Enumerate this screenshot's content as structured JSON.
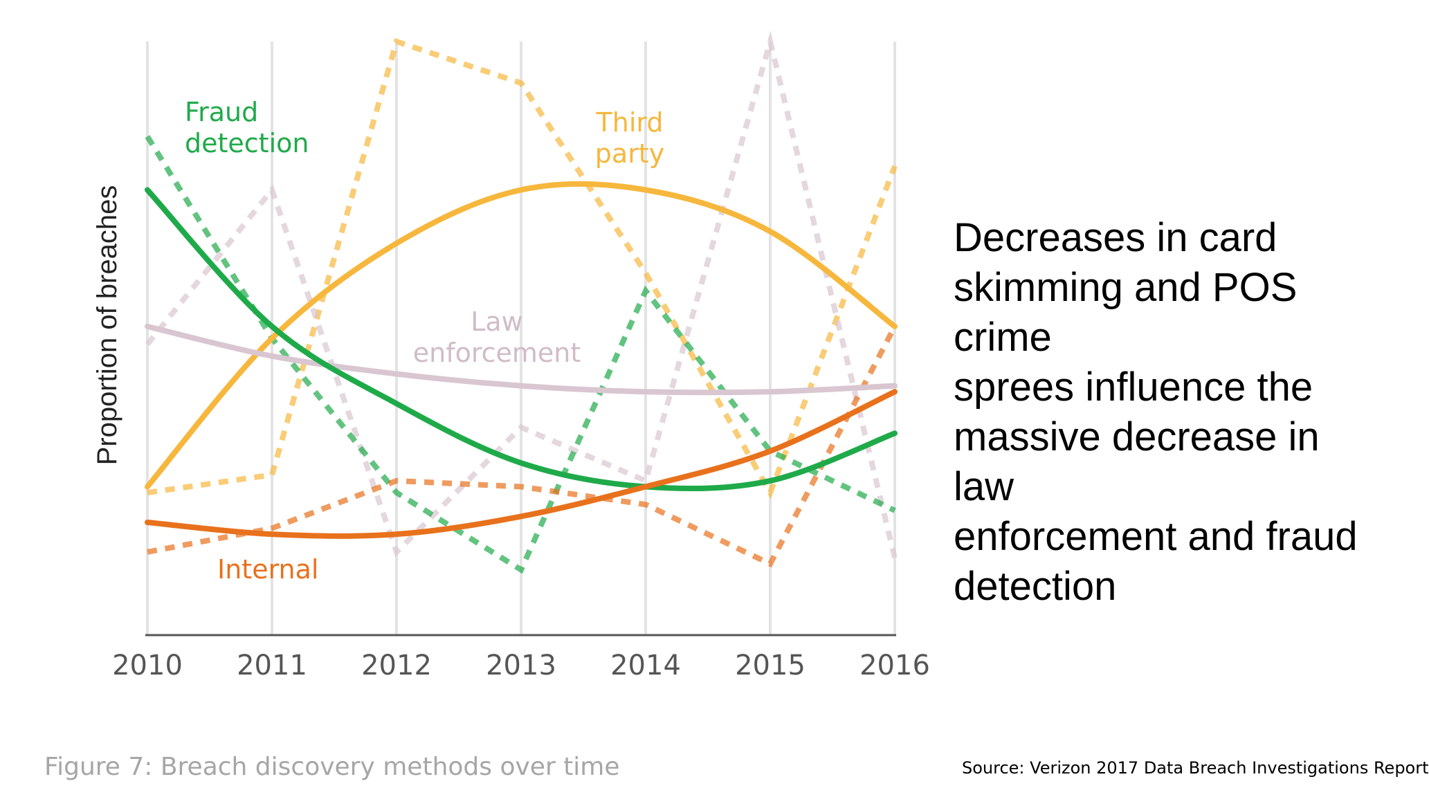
{
  "commentary": {
    "lines": [
      "Decreases in card",
      "skimming and POS",
      "crime",
      "sprees influence the",
      "massive decrease in",
      "law",
      "enforcement and fraud",
      "detection"
    ]
  },
  "caption": "Figure 7: Breach discovery methods over time",
  "source": "Source: Verizon 2017 Data Breach Investigations Report",
  "chart_data": {
    "type": "line",
    "title": "",
    "xlabel": "",
    "ylabel": "Proportion of breaches",
    "x": [
      "2010",
      "2011",
      "2012",
      "2013",
      "2014",
      "2015",
      "2016"
    ],
    "ylim": [
      0,
      100
    ],
    "grid": "vertical",
    "series": [
      {
        "name": "Third party",
        "color": "#f6b73c",
        "label_lines": [
          "Third",
          "party"
        ],
        "values": [
          24,
          27,
          100,
          93,
          61,
          24,
          79
        ],
        "trend": [
          25,
          50,
          66,
          75,
          75,
          68,
          52
        ]
      },
      {
        "name": "Law enforcement",
        "color": "#d9c6d0",
        "label_lines": [
          "Law",
          "enforcement"
        ],
        "values": [
          49,
          75,
          14,
          35,
          26,
          100,
          13
        ],
        "trend": [
          52,
          47,
          44,
          42,
          41,
          41,
          42
        ]
      },
      {
        "name": "Fraud detection",
        "color": "#1faa4a",
        "label_lines": [
          "Fraud",
          "detection"
        ],
        "values": [
          84,
          50,
          24,
          11,
          58,
          31,
          21
        ],
        "trend": [
          75,
          52,
          39,
          29,
          25,
          26,
          34
        ]
      },
      {
        "name": "Internal",
        "color": "#e8711c",
        "label_lines": [
          "Internal"
        ],
        "values": [
          14,
          18,
          26,
          25,
          22,
          12,
          52
        ],
        "trend": [
          19,
          17,
          17,
          20,
          25,
          31,
          41
        ]
      }
    ]
  }
}
